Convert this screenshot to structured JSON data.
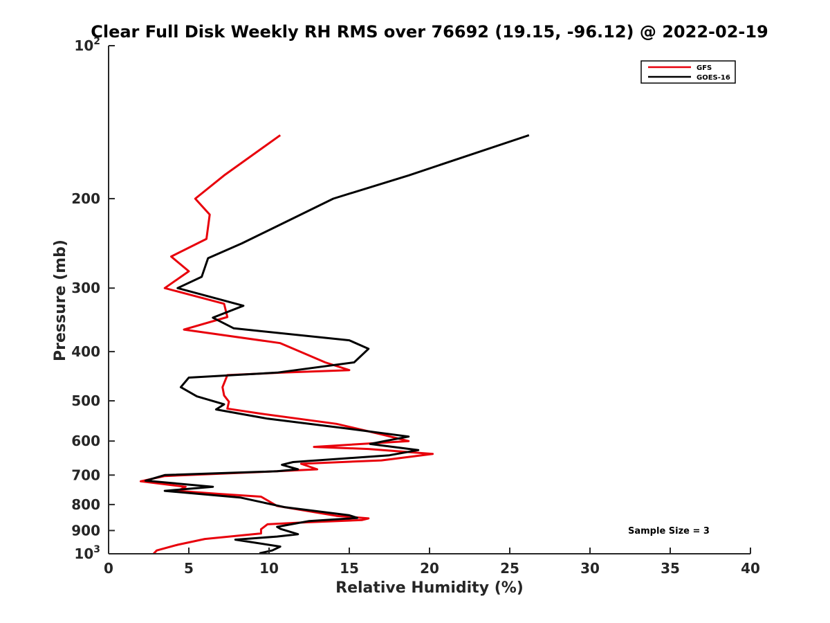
{
  "chart_data": {
    "type": "line",
    "title": "Clear Full Disk Weekly RH RMS over 76692 (19.15, -96.12) @ 2022-02-19",
    "xlabel": "Relative Humidity (%)",
    "ylabel": "Pressure (mb)",
    "xlim": [
      0,
      40
    ],
    "ylim": [
      100,
      1000
    ],
    "yscale": "log",
    "y_reversed": true,
    "xticks": [
      0,
      5,
      10,
      15,
      20,
      25,
      30,
      35,
      40
    ],
    "xtick_labels": [
      "0",
      "5",
      "10",
      "15",
      "20",
      "25",
      "30",
      "35",
      "40"
    ],
    "yticks": [
      {
        "value": 100,
        "base": "10",
        "exp": "2"
      },
      {
        "value": 200,
        "base": "200",
        "exp": ""
      },
      {
        "value": 300,
        "base": "300",
        "exp": ""
      },
      {
        "value": 400,
        "base": "400",
        "exp": ""
      },
      {
        "value": 500,
        "base": "500",
        "exp": ""
      },
      {
        "value": 600,
        "base": "600",
        "exp": ""
      },
      {
        "value": 700,
        "base": "700",
        "exp": ""
      },
      {
        "value": 800,
        "base": "800",
        "exp": ""
      },
      {
        "value": 900,
        "base": "900",
        "exp": ""
      },
      {
        "value": 1000,
        "base": "10",
        "exp": "3"
      }
    ],
    "legend_position": "top-right",
    "annotation": "Sample Size = 3",
    "series": [
      {
        "name": "GFS",
        "color": "#e8000b",
        "points": [
          [
            10.7,
            150
          ],
          [
            7.2,
            180
          ],
          [
            5.4,
            200
          ],
          [
            6.3,
            215
          ],
          [
            6.1,
            240
          ],
          [
            3.9,
            260
          ],
          [
            5.0,
            278
          ],
          [
            3.5,
            300
          ],
          [
            7.2,
            322
          ],
          [
            7.4,
            342
          ],
          [
            4.7,
            362
          ],
          [
            10.7,
            385
          ],
          [
            13.5,
            420
          ],
          [
            15.0,
            435
          ],
          [
            10.8,
            440
          ],
          [
            7.4,
            445
          ],
          [
            7.1,
            470
          ],
          [
            7.2,
            488
          ],
          [
            7.5,
            502
          ],
          [
            7.4,
            518
          ],
          [
            9.5,
            530
          ],
          [
            14.2,
            555
          ],
          [
            17.0,
            582
          ],
          [
            18.7,
            600
          ],
          [
            12.8,
            616
          ],
          [
            16.2,
            622
          ],
          [
            20.2,
            636
          ],
          [
            17.0,
            655
          ],
          [
            12.0,
            665
          ],
          [
            13.0,
            682
          ],
          [
            10.5,
            688
          ],
          [
            3.5,
            703
          ],
          [
            2.0,
            720
          ],
          [
            4.8,
            738
          ],
          [
            4.3,
            752
          ],
          [
            6.8,
            762
          ],
          [
            9.5,
            772
          ],
          [
            10.5,
            805
          ],
          [
            14.2,
            842
          ],
          [
            16.2,
            852
          ],
          [
            15.8,
            858
          ],
          [
            12.0,
            868
          ],
          [
            9.9,
            875
          ],
          [
            9.5,
            895
          ],
          [
            9.5,
            912
          ],
          [
            6.0,
            935
          ],
          [
            4.3,
            960
          ],
          [
            3.0,
            985
          ],
          [
            2.8,
            1000
          ]
        ]
      },
      {
        "name": "GOES-16",
        "color": "#000000",
        "points": [
          [
            26.2,
            150
          ],
          [
            18.7,
            180
          ],
          [
            14.0,
            200
          ],
          [
            10.7,
            225
          ],
          [
            8.3,
            245
          ],
          [
            6.2,
            262
          ],
          [
            5.8,
            285
          ],
          [
            4.3,
            300
          ],
          [
            8.4,
            325
          ],
          [
            6.5,
            343
          ],
          [
            7.8,
            360
          ],
          [
            15.0,
            380
          ],
          [
            16.2,
            395
          ],
          [
            15.3,
            420
          ],
          [
            10.5,
            440
          ],
          [
            5.0,
            450
          ],
          [
            4.5,
            470
          ],
          [
            5.5,
            490
          ],
          [
            7.2,
            508
          ],
          [
            6.7,
            520
          ],
          [
            9.9,
            542
          ],
          [
            14.5,
            565
          ],
          [
            18.7,
            588
          ],
          [
            17.2,
            600
          ],
          [
            16.3,
            608
          ],
          [
            19.3,
            625
          ],
          [
            17.5,
            640
          ],
          [
            11.5,
            660
          ],
          [
            10.8,
            668
          ],
          [
            11.8,
            682
          ],
          [
            10.5,
            688
          ],
          [
            3.5,
            700
          ],
          [
            2.3,
            718
          ],
          [
            6.5,
            738
          ],
          [
            3.5,
            752
          ],
          [
            8.2,
            775
          ],
          [
            11.0,
            810
          ],
          [
            15.0,
            840
          ],
          [
            15.5,
            850
          ],
          [
            12.5,
            862
          ],
          [
            10.5,
            885
          ],
          [
            10.7,
            893
          ],
          [
            11.8,
            915
          ],
          [
            10.5,
            925
          ],
          [
            7.9,
            938
          ],
          [
            10.7,
            968
          ],
          [
            10.2,
            985
          ],
          [
            9.4,
            998
          ]
        ]
      }
    ]
  }
}
